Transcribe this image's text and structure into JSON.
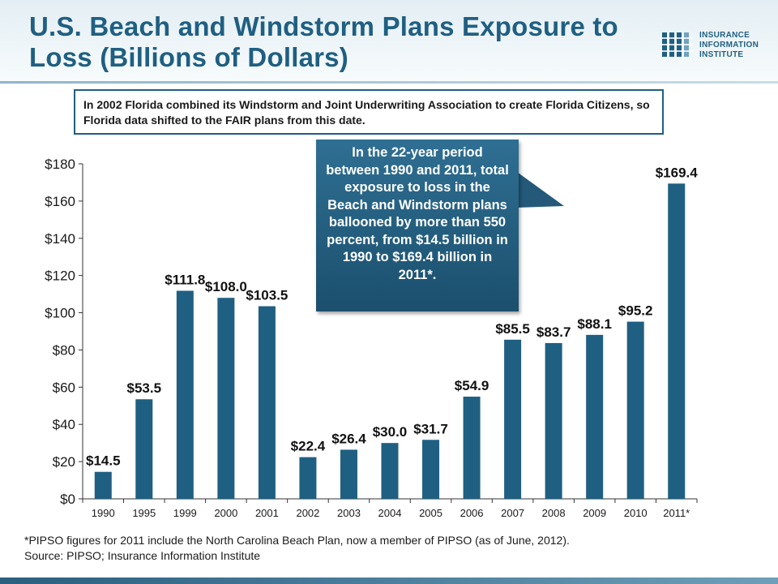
{
  "slide": {
    "title": "U.S. Beach and Windstorm Plans Exposure to Loss (Billions of Dollars)",
    "logo_lines": [
      "INSURANCE",
      "INFORMATION",
      "INSTITUTE"
    ],
    "note": "In 2002 Florida combined its Windstorm and Joint Underwriting Association to create Florida Citizens, so Florida data shifted to the FAIR plans from this date.",
    "callout": "In the 22-year period between 1990 and 2011, total exposure to loss in the Beach and Windstorm plans ballooned by more than 550 percent, from $14.5 billion in 1990 to $169.4 billion in 2011*.",
    "footnote": "*PIPSO figures for 2011 include the North Carolina Beach Plan, now a member of PIPSO (as of June, 2012).",
    "source": "Source: PIPSO; Insurance Information Institute"
  },
  "colors": {
    "accent": "#1f5f82",
    "bar": "#1f5f82",
    "background": "#ffffff"
  },
  "chart_data": {
    "type": "bar",
    "categories": [
      "1990",
      "1995",
      "1999",
      "2000",
      "2001",
      "2002",
      "2003",
      "2004",
      "2005",
      "2006",
      "2007",
      "2008",
      "2009",
      "2010",
      "2011*"
    ],
    "values": [
      14.5,
      53.5,
      111.8,
      108.0,
      103.5,
      22.4,
      26.4,
      30.0,
      31.7,
      54.9,
      85.5,
      83.7,
      88.1,
      95.2,
      169.4
    ],
    "data_labels": [
      "$14.5",
      "$53.5",
      "$111.8",
      "$108.0",
      "$103.5",
      "$22.4",
      "$26.4",
      "$30.0",
      "$31.7",
      "$54.9",
      "$85.5",
      "$83.7",
      "$88.1",
      "$95.2",
      "$169.4"
    ],
    "y_ticks": [
      0,
      20,
      40,
      60,
      80,
      100,
      120,
      140,
      160,
      180
    ],
    "y_tick_labels": [
      "$0",
      "$20",
      "$40",
      "$60",
      "$80",
      "$100",
      "$120",
      "$140",
      "$160",
      "$180"
    ],
    "ylim": [
      0,
      180
    ],
    "grid": false
  }
}
